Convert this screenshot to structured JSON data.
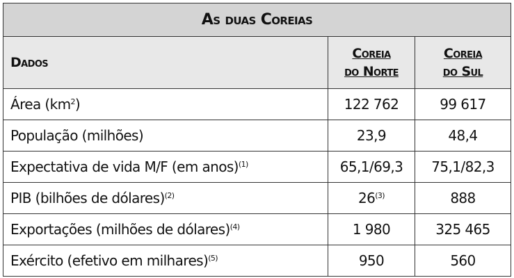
{
  "title": "As duas Coreias",
  "table": {
    "header": {
      "data": "Dados",
      "north": [
        "Coreia",
        "do Norte"
      ],
      "south": [
        "Coreia",
        "do Sul"
      ]
    },
    "rows": [
      {
        "label": "Área (km",
        "label_sup": "2",
        "label_tail": ")",
        "north": "122 762",
        "south": "99 617"
      },
      {
        "label": "População (milhões)",
        "north": "23,9",
        "south": "48,4"
      },
      {
        "label": "Expectativa de vida M/F (em anos)",
        "label_sup": "(1)",
        "north": "65,1/69,3",
        "south": "75,1/82,3"
      },
      {
        "label": "PIB (bilhões de dólares)",
        "label_sup": "(2)",
        "north": "26",
        "north_sup": "(3)",
        "south": "888"
      },
      {
        "label": "Exportações (milhões de dólares)",
        "label_sup": "(4)",
        "north": "1 980",
        "south": "325 465"
      },
      {
        "label": "Exército (efetivo em milhares)",
        "label_sup": "(5)",
        "north": "950",
        "south": "560"
      }
    ]
  }
}
